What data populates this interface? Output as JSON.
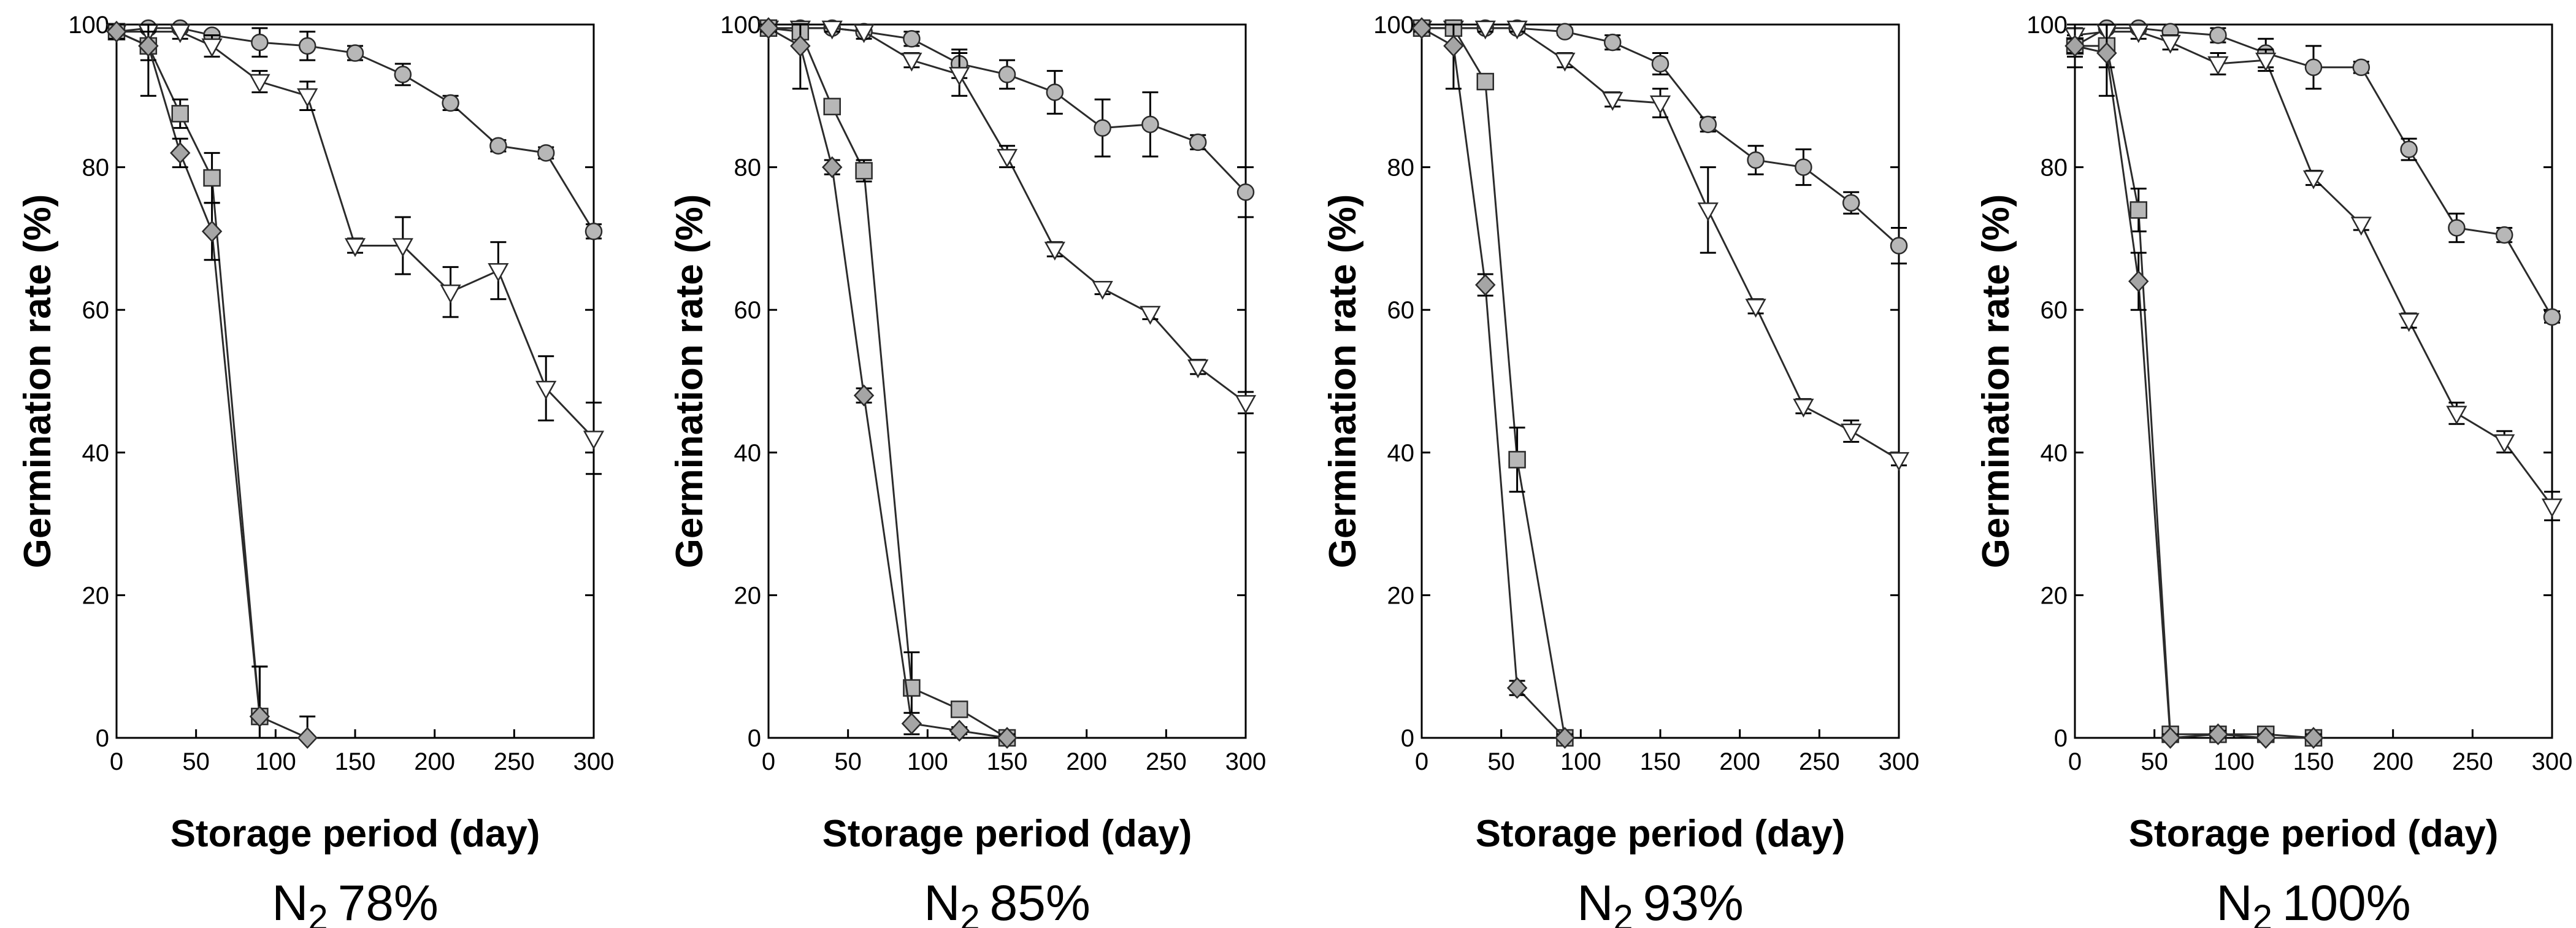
{
  "figure": {
    "ylabel": "Germination rate (%)",
    "xlabel": "Storage period (day)"
  },
  "style": {
    "marker_fill": "#b7b7b7",
    "diamond_fill": "#a5a5a5",
    "stroke": "#2b2b2b"
  },
  "chart_data": [
    {
      "type": "line",
      "condition_prefix": "N",
      "condition_sub": "2",
      "condition_value": "78%",
      "xlabel": "Storage period (day)",
      "ylabel": "Germination rate (%)",
      "xlim": [
        0,
        300
      ],
      "ylim": [
        0,
        100
      ],
      "xticks": [
        0,
        50,
        100,
        150,
        200,
        250,
        300
      ],
      "yticks": [
        0,
        20,
        40,
        60,
        80,
        100
      ],
      "series": [
        {
          "marker": "circle",
          "x": [
            0,
            20,
            40,
            60,
            90,
            120,
            150,
            180,
            210,
            240,
            270,
            300
          ],
          "y": [
            99,
            99.5,
            99.5,
            98.5,
            97.5,
            97,
            96,
            93,
            89,
            83,
            82,
            71
          ],
          "err": [
            1,
            0.5,
            0.5,
            0.5,
            2,
            2,
            1,
            1.5,
            1,
            0.8,
            0.8,
            1
          ]
        },
        {
          "marker": "triangle",
          "x": [
            0,
            20,
            40,
            60,
            90,
            120,
            150,
            180,
            210,
            240,
            270,
            300
          ],
          "y": [
            99,
            99,
            99,
            97,
            92,
            90,
            69,
            69,
            62.5,
            65.5,
            49,
            42
          ],
          "err": [
            1,
            1,
            1,
            1.5,
            1.5,
            2,
            1,
            4,
            3.5,
            4,
            4.5,
            5
          ]
        },
        {
          "marker": "square",
          "x": [
            0,
            20,
            40,
            60,
            90
          ],
          "y": [
            99,
            97,
            87.5,
            78.5,
            3
          ],
          "err": [
            1,
            2,
            2,
            3.5,
            7
          ]
        },
        {
          "marker": "diamond",
          "x": [
            0,
            20,
            40,
            60,
            90,
            120
          ],
          "y": [
            99,
            97,
            82,
            71,
            3,
            0
          ],
          "err": [
            1,
            7,
            2,
            4,
            7,
            3
          ]
        }
      ]
    },
    {
      "type": "line",
      "condition_prefix": "N",
      "condition_sub": "2",
      "condition_value": "85%",
      "xlabel": "Storage period (day)",
      "ylabel": "Germination rate (%)",
      "xlim": [
        0,
        300
      ],
      "ylim": [
        0,
        100
      ],
      "xticks": [
        0,
        50,
        100,
        150,
        200,
        250,
        300
      ],
      "yticks": [
        0,
        20,
        40,
        60,
        80,
        100
      ],
      "series": [
        {
          "marker": "circle",
          "x": [
            0,
            20,
            40,
            60,
            90,
            120,
            150,
            180,
            210,
            240,
            270,
            300
          ],
          "y": [
            99.5,
            99.5,
            99.5,
            99,
            98,
            94.5,
            93,
            90.5,
            85.5,
            86,
            83.5,
            76.5
          ],
          "err": [
            0.5,
            0.5,
            0.5,
            0.5,
            1,
            2,
            2,
            3,
            4,
            4.5,
            1,
            3.5
          ]
        },
        {
          "marker": "triangle",
          "x": [
            0,
            20,
            40,
            60,
            90,
            120,
            150,
            180,
            210,
            240,
            270,
            300
          ],
          "y": [
            99.5,
            99.5,
            99.5,
            99,
            95,
            93,
            81.5,
            68.5,
            63,
            59.5,
            52,
            47
          ],
          "err": [
            0.5,
            0.5,
            0.5,
            1,
            1,
            3,
            1.5,
            1,
            0.8,
            0.8,
            1,
            1.5
          ]
        },
        {
          "marker": "square",
          "x": [
            0,
            20,
            40,
            60,
            90,
            120,
            150
          ],
          "y": [
            99.5,
            99,
            88.5,
            79.5,
            7,
            4,
            0
          ],
          "err": [
            0.5,
            0.5,
            1,
            1.5,
            5,
            1,
            0.5
          ]
        },
        {
          "marker": "diamond",
          "x": [
            0,
            20,
            40,
            60,
            90,
            120,
            150
          ],
          "y": [
            99.5,
            97,
            80,
            48,
            2,
            1,
            0
          ],
          "err": [
            0.5,
            6,
            1,
            1,
            1.5,
            0.5,
            0.5
          ]
        }
      ]
    },
    {
      "type": "line",
      "condition_prefix": "N",
      "condition_sub": "2",
      "condition_value": "93%",
      "xlabel": "Storage period (day)",
      "ylabel": "Germination rate (%)",
      "xlim": [
        0,
        300
      ],
      "ylim": [
        0,
        100
      ],
      "xticks": [
        0,
        50,
        100,
        150,
        200,
        250,
        300
      ],
      "yticks": [
        0,
        20,
        40,
        60,
        80,
        100
      ],
      "series": [
        {
          "marker": "circle",
          "x": [
            0,
            20,
            40,
            60,
            90,
            120,
            150,
            180,
            210,
            240,
            270,
            300
          ],
          "y": [
            99.5,
            99.5,
            99.5,
            99.5,
            99,
            97.5,
            94.5,
            86,
            81,
            80,
            75,
            69
          ],
          "err": [
            0.5,
            0.5,
            0.5,
            0.5,
            0.5,
            1,
            1.5,
            1,
            2,
            2.5,
            1.5,
            2.5
          ]
        },
        {
          "marker": "triangle",
          "x": [
            0,
            20,
            40,
            60,
            90,
            120,
            150,
            180,
            210,
            240,
            270,
            300
          ],
          "y": [
            99.5,
            99.5,
            99.5,
            99.5,
            95,
            89.5,
            89,
            74,
            60.5,
            46.5,
            43,
            39
          ],
          "err": [
            0.5,
            0.5,
            0.5,
            0.5,
            1,
            1,
            2,
            6,
            1,
            1,
            1.5,
            0.8
          ]
        },
        {
          "marker": "square",
          "x": [
            0,
            20,
            40,
            60,
            90
          ],
          "y": [
            99.5,
            99.5,
            92,
            39,
            0
          ],
          "err": [
            0.5,
            0.5,
            1,
            4.5,
            1
          ]
        },
        {
          "marker": "diamond",
          "x": [
            0,
            20,
            40,
            60,
            90
          ],
          "y": [
            99.5,
            97,
            63.5,
            7,
            0
          ],
          "err": [
            0.5,
            6,
            1.5,
            1,
            0.5
          ]
        }
      ]
    },
    {
      "type": "line",
      "condition_prefix": "N",
      "condition_sub": "2",
      "condition_value": "100%",
      "xlabel": "Storage period (day)",
      "ylabel": "Germination rate (%)",
      "xlim": [
        0,
        300
      ],
      "ylim": [
        0,
        100
      ],
      "xticks": [
        0,
        50,
        100,
        150,
        200,
        250,
        300
      ],
      "yticks": [
        0,
        20,
        40,
        60,
        80,
        100
      ],
      "series": [
        {
          "marker": "circle",
          "x": [
            0,
            20,
            40,
            60,
            90,
            120,
            150,
            180,
            210,
            240,
            270,
            300
          ],
          "y": [
            97,
            99.5,
            99.5,
            99,
            98.5,
            96,
            94,
            94,
            82.5,
            71.5,
            70.5,
            59
          ],
          "err": [
            1.5,
            0.5,
            0.5,
            1,
            1,
            2,
            3,
            0.8,
            1.5,
            2,
            1,
            0.8
          ]
        },
        {
          "marker": "triangle",
          "x": [
            0,
            20,
            40,
            60,
            90,
            120,
            150,
            180,
            210,
            240,
            270,
            300
          ],
          "y": [
            98.5,
            99,
            99,
            97.5,
            94.5,
            95,
            78.5,
            72,
            58.5,
            45.5,
            41.5,
            32.5
          ],
          "err": [
            1,
            1,
            1,
            1,
            1.5,
            1.5,
            1,
            0.8,
            1,
            1.5,
            1.5,
            2
          ]
        },
        {
          "marker": "square",
          "x": [
            0,
            20,
            40,
            60,
            90,
            120,
            150
          ],
          "y": [
            97,
            97,
            74,
            0.5,
            0.5,
            0.5,
            0
          ],
          "err": [
            3,
            3,
            3,
            0.5,
            0.5,
            1,
            0.5
          ]
        },
        {
          "marker": "diamond",
          "x": [
            0,
            20,
            40,
            60,
            90,
            120,
            150
          ],
          "y": [
            97,
            96,
            64,
            0,
            0.5,
            0,
            0
          ],
          "err": [
            1,
            6,
            4,
            0.5,
            0.5,
            0.5,
            0.5
          ]
        }
      ]
    }
  ]
}
